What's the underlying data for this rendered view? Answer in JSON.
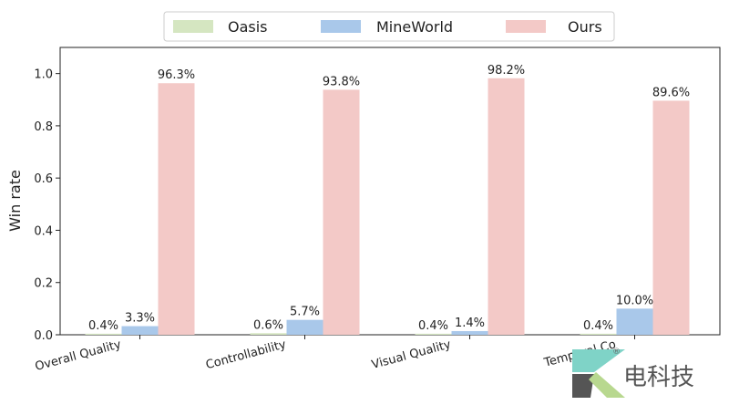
{
  "chart_data": {
    "type": "bar",
    "title": "",
    "xlabel": "",
    "ylabel": "Win rate",
    "ylim": [
      0,
      1.1
    ],
    "yticks": [
      "0.0",
      "0.2",
      "0.4",
      "0.6",
      "0.8",
      "1.0"
    ],
    "categories": [
      "Overall Quality",
      "Controllability",
      "Visual Quality",
      "Temporal Co"
    ],
    "series": [
      {
        "name": "Oasis",
        "color": "#d5e6c1",
        "values": [
          0.004,
          0.006,
          0.004,
          0.004
        ],
        "labels": [
          "0.4%",
          "0.6%",
          "0.4%",
          "0.4%"
        ]
      },
      {
        "name": "MineWorld",
        "color": "#a9c8ea",
        "values": [
          0.033,
          0.057,
          0.014,
          0.1
        ],
        "labels": [
          "3.3%",
          "5.7%",
          "1.4%",
          "10.0%"
        ]
      },
      {
        "name": "Ours",
        "color": "#f3c9c7",
        "values": [
          0.963,
          0.938,
          0.982,
          0.896
        ],
        "labels": [
          "96.3%",
          "93.8%",
          "98.2%",
          "89.6%"
        ]
      }
    ],
    "legend": "top-center",
    "grid": false
  },
  "watermark": {
    "text": "电科技",
    "registered": "®",
    "icon": "k-logo-icon"
  }
}
